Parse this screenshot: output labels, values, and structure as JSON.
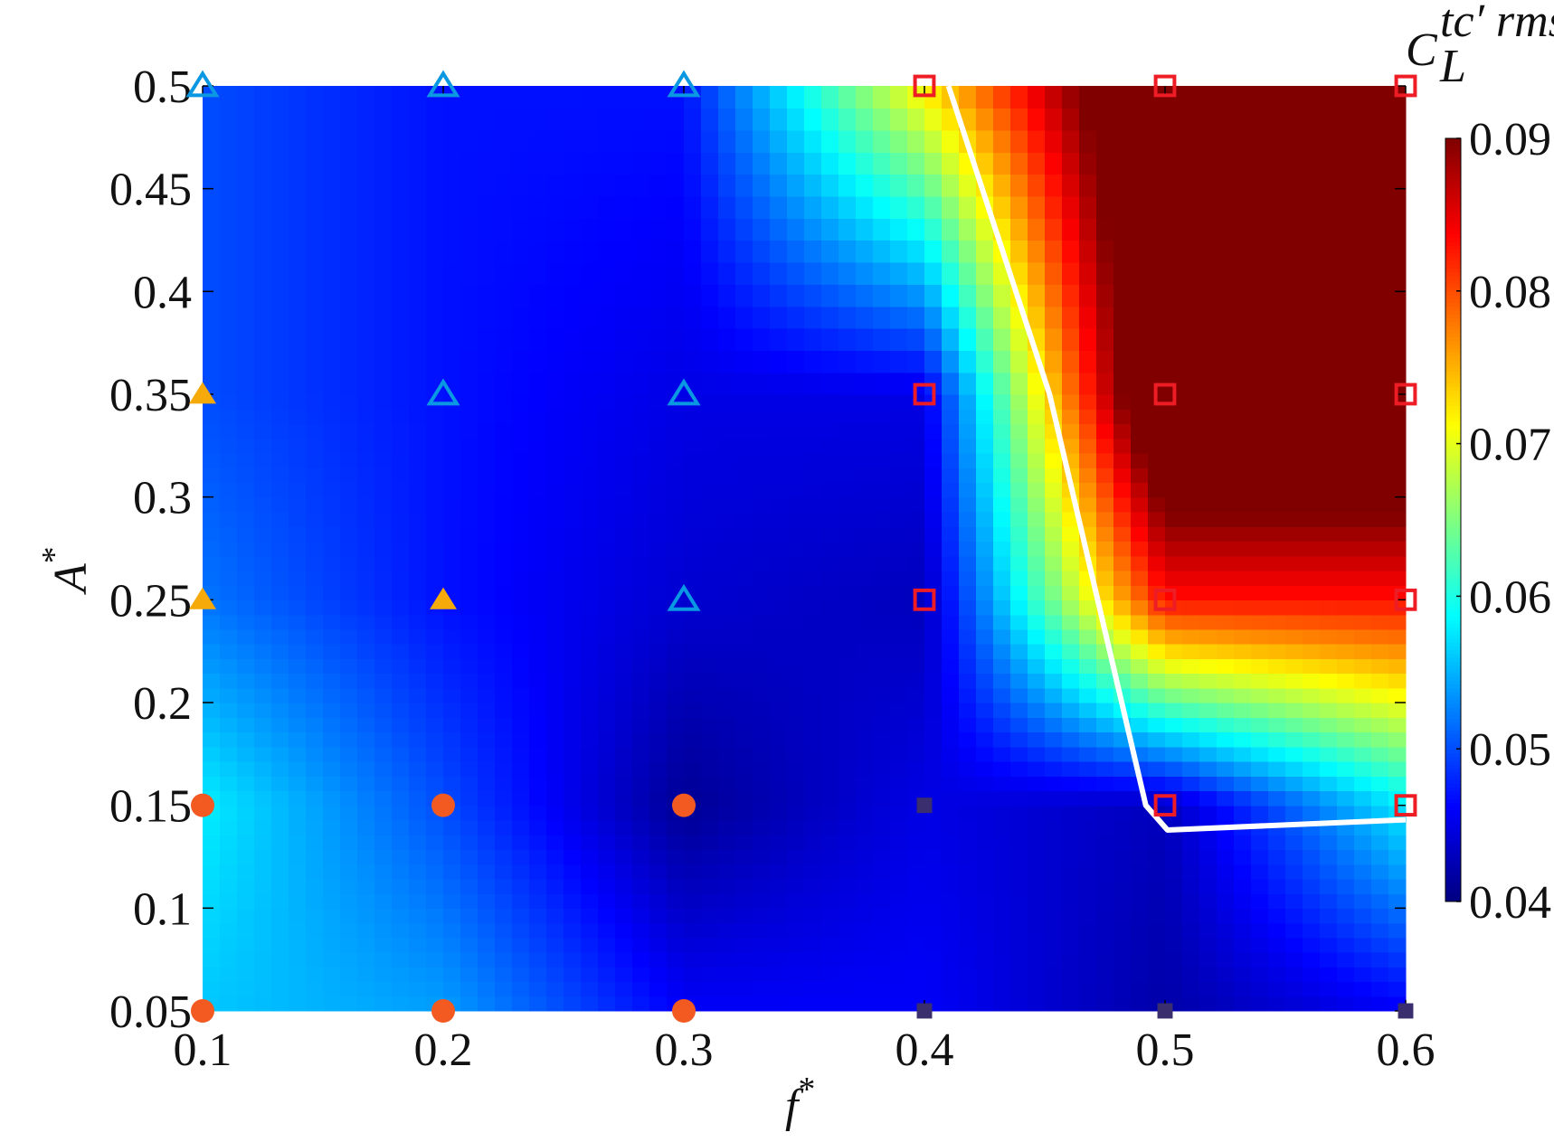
{
  "chart_data": {
    "type": "contour",
    "x": [
      0.1,
      0.2,
      0.3,
      0.4,
      0.5,
      0.6
    ],
    "y": [
      0.05,
      0.15,
      0.25,
      0.35,
      0.5
    ],
    "z": [
      [
        0.056,
        0.054,
        0.046,
        0.046,
        0.042,
        0.046
      ],
      [
        0.058,
        0.05,
        0.041,
        0.045,
        0.043,
        0.058
      ],
      [
        0.052,
        0.047,
        0.044,
        0.043,
        0.083,
        0.083
      ],
      [
        0.05,
        0.047,
        0.045,
        0.045,
        0.1,
        0.1
      ],
      [
        0.05,
        0.047,
        0.047,
        0.072,
        0.1,
        0.1
      ]
    ],
    "colormap": "jet",
    "zlim": [
      0.04,
      0.09
    ],
    "colorbar_ticks": [
      0.04,
      0.05,
      0.06,
      0.07,
      0.08,
      0.09
    ],
    "colorbar_label": {
      "base": "C",
      "sub": "L",
      "sup": "tc′ rms"
    },
    "xlim": [
      0.1,
      0.6
    ],
    "ylim": [
      0.05,
      0.5
    ],
    "xticks": [
      0.1,
      0.2,
      0.3,
      0.4,
      0.5,
      0.6
    ],
    "yticks": [
      0.05,
      0.1,
      0.15,
      0.2,
      0.25,
      0.3,
      0.35,
      0.4,
      0.45,
      0.5
    ],
    "xlabel": {
      "base": "f",
      "sup": "*"
    },
    "ylabel": {
      "base": "A",
      "sup": "*"
    },
    "boundary": {
      "color": "#ffffff",
      "x": [
        0.41,
        0.452,
        0.492,
        0.501,
        0.6
      ],
      "y": [
        0.5,
        0.35,
        0.15,
        0.138,
        0.143
      ]
    },
    "markers": [
      {
        "marker": "triangle-open",
        "color": "#0a98e2",
        "x": [
          0.1,
          0.2,
          0.3,
          0.2,
          0.3,
          0.3
        ],
        "y": [
          0.5,
          0.5,
          0.5,
          0.35,
          0.35,
          0.25
        ]
      },
      {
        "marker": "triangle-filled",
        "color": "#f5aa0a",
        "x": [
          0.1,
          0.1,
          0.2
        ],
        "y": [
          0.35,
          0.25,
          0.25
        ]
      },
      {
        "marker": "circle-filled",
        "color": "#f25a22",
        "x": [
          0.1,
          0.2,
          0.3,
          0.1,
          0.2,
          0.3
        ],
        "y": [
          0.15,
          0.15,
          0.15,
          0.05,
          0.05,
          0.05
        ]
      },
      {
        "marker": "square-filled",
        "color": "#3b2e6e",
        "x": [
          0.4,
          0.4,
          0.5,
          0.6
        ],
        "y": [
          0.15,
          0.05,
          0.05,
          0.05
        ]
      },
      {
        "marker": "square-open",
        "color": "#ee1c24",
        "x": [
          0.4,
          0.5,
          0.6,
          0.4,
          0.5,
          0.6,
          0.4,
          0.5,
          0.6,
          0.5,
          0.6
        ],
        "y": [
          0.5,
          0.5,
          0.5,
          0.35,
          0.35,
          0.35,
          0.25,
          0.25,
          0.25,
          0.15,
          0.15
        ]
      }
    ]
  }
}
